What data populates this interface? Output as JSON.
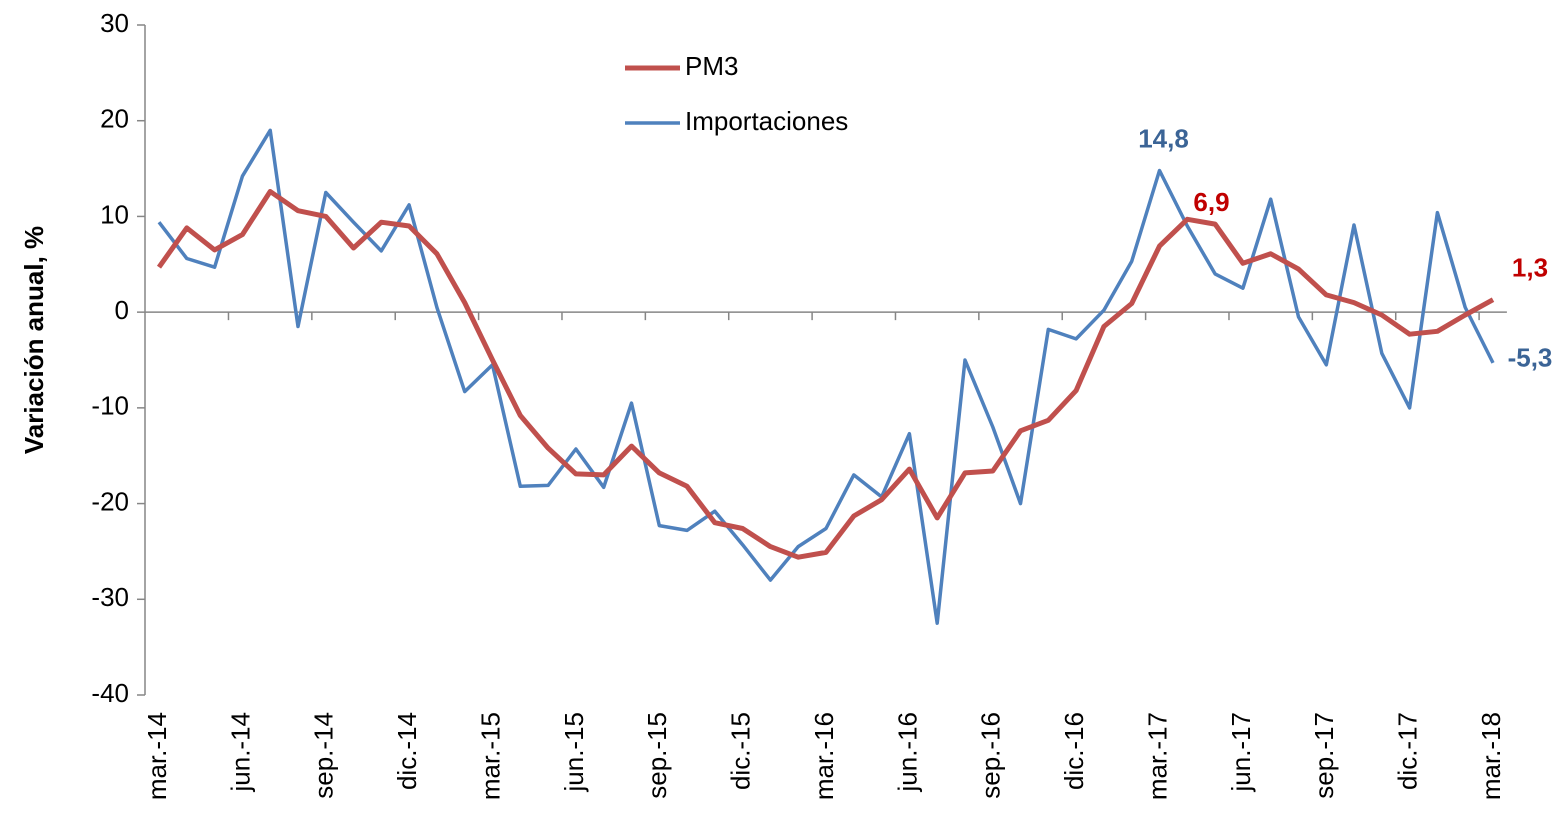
{
  "chart_data": {
    "type": "line",
    "y_label": "Variación anual, %",
    "categories": [
      "mar.-14",
      null,
      null,
      "jun.-14",
      null,
      null,
      "sep.-14",
      null,
      null,
      "dic.-14",
      null,
      null,
      "mar.-15",
      null,
      null,
      "jun.-15",
      null,
      null,
      "sep.-15",
      null,
      null,
      "dic.-15",
      null,
      null,
      "mar.-16",
      null,
      null,
      "jun.-16",
      null,
      null,
      "sep.-16",
      null,
      null,
      "dic.-16",
      null,
      null,
      "mar.-17",
      null,
      null,
      "jun.-17",
      null,
      null,
      "sep.-17",
      null,
      null,
      "dic.-17",
      null,
      null,
      "mar.-18"
    ],
    "series": [
      {
        "name": "PM3",
        "color": "#c0504d",
        "values": [
          4.7,
          8.8,
          6.5,
          8.1,
          12.6,
          10.6,
          10,
          6.7,
          9.4,
          9,
          6.1,
          1,
          -5,
          -10.8,
          -14.2,
          -16.9,
          -17,
          -14,
          -16.8,
          -18.2,
          -22,
          -22.6,
          -24.5,
          -25.6,
          -25.1,
          -21.3,
          -19.6,
          -16.4,
          -21.5,
          -16.8,
          -16.6,
          -12.4,
          -11.3,
          -8.2,
          -1.5,
          0.9,
          6.9,
          9.7,
          9.2,
          5.1,
          6.1,
          4.5,
          1.8,
          1,
          -0.3,
          -2.3,
          -2,
          -0.3,
          1.3
        ],
        "value_labels": [
          null,
          null,
          null,
          null,
          null,
          null,
          null,
          null,
          null,
          null,
          null,
          null,
          null,
          null,
          null,
          null,
          null,
          null,
          null,
          null,
          null,
          null,
          null,
          null,
          null,
          null,
          null,
          null,
          null,
          null,
          null,
          null,
          null,
          null,
          null,
          null,
          "6,9",
          null,
          null,
          null,
          null,
          null,
          null,
          null,
          null,
          null,
          null,
          null,
          "1,3"
        ]
      },
      {
        "name": "Importaciones",
        "color": "#4f81bd",
        "values": [
          9.4,
          5.6,
          4.7,
          14.2,
          19,
          -1.5,
          12.5,
          9.4,
          6.4,
          11.2,
          0.5,
          -8.3,
          -5.5,
          -18.2,
          -18.1,
          -14.3,
          -18.3,
          -9.5,
          -22.3,
          -22.8,
          -20.8,
          -24.3,
          -28,
          -24.5,
          -22.6,
          -17,
          -19.3,
          -12.7,
          -32.5,
          -5,
          -12,
          -20,
          -1.8,
          -2.8,
          0.2,
          5.3,
          14.8,
          9,
          4,
          2.5,
          11.8,
          -0.5,
          -5.5,
          9.1,
          -4.3,
          -10,
          10.4,
          0.5,
          -5.3
        ],
        "value_labels": [
          null,
          null,
          null,
          null,
          null,
          null,
          null,
          null,
          null,
          null,
          null,
          null,
          null,
          null,
          null,
          null,
          null,
          null,
          null,
          null,
          null,
          null,
          null,
          null,
          null,
          null,
          null,
          null,
          null,
          null,
          null,
          null,
          null,
          null,
          null,
          null,
          "14,8",
          null,
          null,
          null,
          null,
          null,
          null,
          null,
          null,
          null,
          null,
          null,
          "-5,3"
        ]
      }
    ],
    "ylim": [
      -40,
      30
    ],
    "yticks": [
      -40,
      -30,
      -20,
      -10,
      0,
      10,
      20,
      30
    ]
  }
}
